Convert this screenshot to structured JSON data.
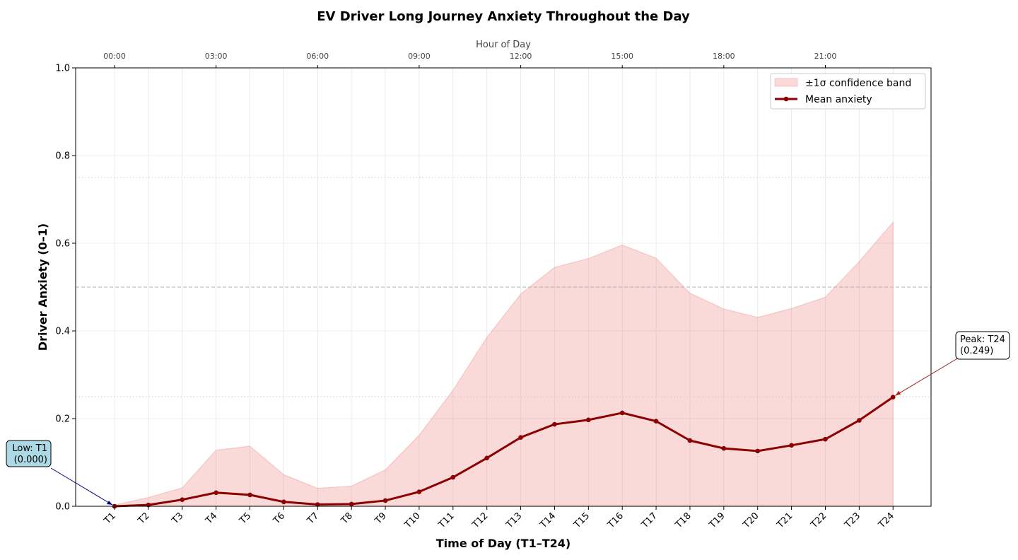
{
  "chart_data": {
    "type": "line",
    "title": "EV Driver Long Journey Anxiety Throughout the Day",
    "xlabel": "Time of Day (T1–T24)",
    "ylabel": "Driver Anxiety (0–1)",
    "top_xlabel": "Hour of Day",
    "categories": [
      "T1",
      "T2",
      "T3",
      "T4",
      "T5",
      "T6",
      "T7",
      "T8",
      "T9",
      "T10",
      "T11",
      "T12",
      "T13",
      "T14",
      "T15",
      "T16",
      "T17",
      "T18",
      "T19",
      "T20",
      "T21",
      "T22",
      "T23",
      "T24"
    ],
    "series": [
      {
        "name": "Mean anxiety",
        "color": "#8b0000",
        "values": [
          0.0,
          0.003,
          0.015,
          0.031,
          0.026,
          0.01,
          0.004,
          0.005,
          0.013,
          0.033,
          0.066,
          0.11,
          0.157,
          0.187,
          0.197,
          0.213,
          0.194,
          0.15,
          0.132,
          0.126,
          0.139,
          0.153,
          0.196,
          0.249
        ]
      }
    ],
    "band": {
      "name": "±1σ confidence band",
      "color": "#f08080",
      "lower": [
        0,
        0,
        0,
        0,
        0,
        0,
        0,
        0,
        0,
        0,
        0,
        0,
        0,
        0,
        0,
        0,
        0,
        0,
        0,
        0,
        0,
        0,
        0,
        0
      ],
      "upper": [
        0.003,
        0.02,
        0.042,
        0.128,
        0.137,
        0.072,
        0.041,
        0.046,
        0.083,
        0.162,
        0.265,
        0.385,
        0.484,
        0.545,
        0.565,
        0.596,
        0.566,
        0.486,
        0.45,
        0.431,
        0.451,
        0.477,
        0.558,
        0.648
      ]
    },
    "ylim": [
      0,
      1.0
    ],
    "yticks": [
      "0.0",
      "0.2",
      "0.4",
      "0.6",
      "0.8",
      "1.0"
    ],
    "ytick_values": [
      0,
      0.2,
      0.4,
      0.6,
      0.8,
      1.0
    ],
    "top_ticks": [
      {
        "label": "00:00",
        "index": 0
      },
      {
        "label": "03:00",
        "index": 3
      },
      {
        "label": "06:00",
        "index": 6
      },
      {
        "label": "09:00",
        "index": 9
      },
      {
        "label": "12:00",
        "index": 12
      },
      {
        "label": "15:00",
        "index": 15
      },
      {
        "label": "18:00",
        "index": 18
      },
      {
        "label": "21:00",
        "index": 21
      }
    ],
    "reference_lines": [
      {
        "y": 0.5,
        "style": "dashed"
      },
      {
        "y": 0.25,
        "style": "dotted"
      },
      {
        "y": 0.75,
        "style": "dotted"
      }
    ],
    "annotations": [
      {
        "text_line1": "Peak: T24",
        "text_line2": "(0.249)",
        "index": 23,
        "value": 0.249,
        "bg": "#ffffff",
        "edge": "#000000",
        "arrow": "#a52a2a"
      },
      {
        "text_line1": "Low: T1",
        "text_line2": "(0.000)",
        "index": 0,
        "value": 0.0,
        "bg": "#add8e6",
        "edge": "#000000",
        "arrow": "#00008b"
      }
    ],
    "grid": true,
    "legend_position": "top-right"
  }
}
